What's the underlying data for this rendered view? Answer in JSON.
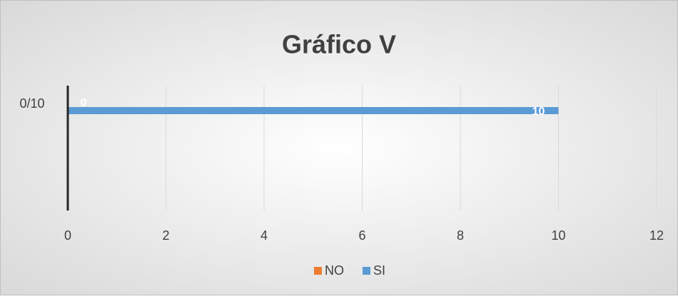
{
  "chart_data": {
    "type": "hbar",
    "title": "Gráfico V",
    "categories": [
      "0/10"
    ],
    "series": [
      {
        "name": "NO",
        "color": "#ed7d31",
        "values": [
          0
        ]
      },
      {
        "name": "SI",
        "color": "#5b9bd5",
        "values": [
          10
        ]
      }
    ],
    "xlim": [
      0,
      12
    ],
    "xticks": [
      0,
      2,
      4,
      6,
      8,
      10,
      12
    ],
    "grid": true,
    "legend": "bottom"
  }
}
